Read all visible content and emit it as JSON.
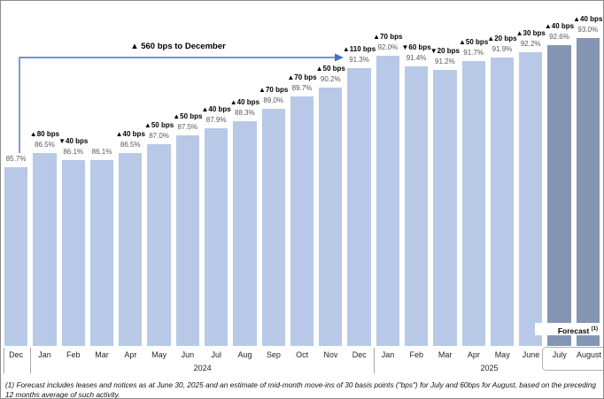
{
  "annotation": {
    "text": "▲ 560 bps to December"
  },
  "forecast_tag": {
    "text": "Forecast ",
    "sup": "(1)"
  },
  "footnote": "(1) Forecast includes leases and notices as at June 30, 2025 and an estimate of mid-month move-ins of 30 basis points (\"bps\") for July and 60bps for August, based on the preceding 12 months average of such activity.",
  "colors": {
    "bar": "#b7c9e6",
    "bar_forecast": "#8496b3",
    "arrow": "#4472c4"
  },
  "chart_data": {
    "type": "bar",
    "title": "",
    "xlabel": "",
    "ylabel": "",
    "ylim": [
      75.6,
      95.1
    ],
    "grid": false,
    "legend": false,
    "categories": [
      "Dec",
      "Jan",
      "Feb",
      "Mar",
      "Apr",
      "May",
      "Jun",
      "Jul",
      "Aug",
      "Sep",
      "Oct",
      "Nov",
      "Dec",
      "Jan",
      "Feb",
      "Mar",
      "Apr",
      "May",
      "June",
      "July",
      "August"
    ],
    "values": [
      85.7,
      86.5,
      86.1,
      86.1,
      86.5,
      87.0,
      87.5,
      87.9,
      88.3,
      89.0,
      89.7,
      90.2,
      91.3,
      92.0,
      91.4,
      91.2,
      91.7,
      91.9,
      92.2,
      92.6,
      93.0
    ],
    "value_labels": [
      "85.7%",
      "86.5%",
      "86.1%",
      "86.1%",
      "86.5%",
      "87.0%",
      "87.5%",
      "87.9%",
      "88.3%",
      "89.0%",
      "89.7%",
      "90.2%",
      "91.3%",
      "92.0%",
      "91.4%",
      "91.2%",
      "91.7%",
      "91.9%",
      "92.2%",
      "92.6%",
      "93.0%"
    ],
    "change_labels": [
      null,
      "▲80 bps",
      "▼40 bps",
      null,
      "▲40 bps",
      "▲50 bps",
      "▲50 bps",
      "▲40 bps",
      "▲40 bps",
      "▲70 bps",
      "▲70 bps",
      "▲50 bps",
      "▲110 bps",
      "▲70 bps",
      "▼60 bps",
      "▼20 bps",
      "▲50 bps",
      "▲20 bps",
      "▲30 bps",
      "▲40 bps",
      "▲40 bps"
    ],
    "forecast_flags": [
      false,
      false,
      false,
      false,
      false,
      false,
      false,
      false,
      false,
      false,
      false,
      false,
      false,
      false,
      false,
      false,
      false,
      false,
      false,
      true,
      true
    ],
    "groups": [
      {
        "label": "",
        "start": 0,
        "count": 1
      },
      {
        "label": "2024",
        "start": 1,
        "count": 12
      },
      {
        "label": "2025",
        "start": 13,
        "count": 8
      }
    ],
    "annotation": "▲ 560 bps to December"
  }
}
